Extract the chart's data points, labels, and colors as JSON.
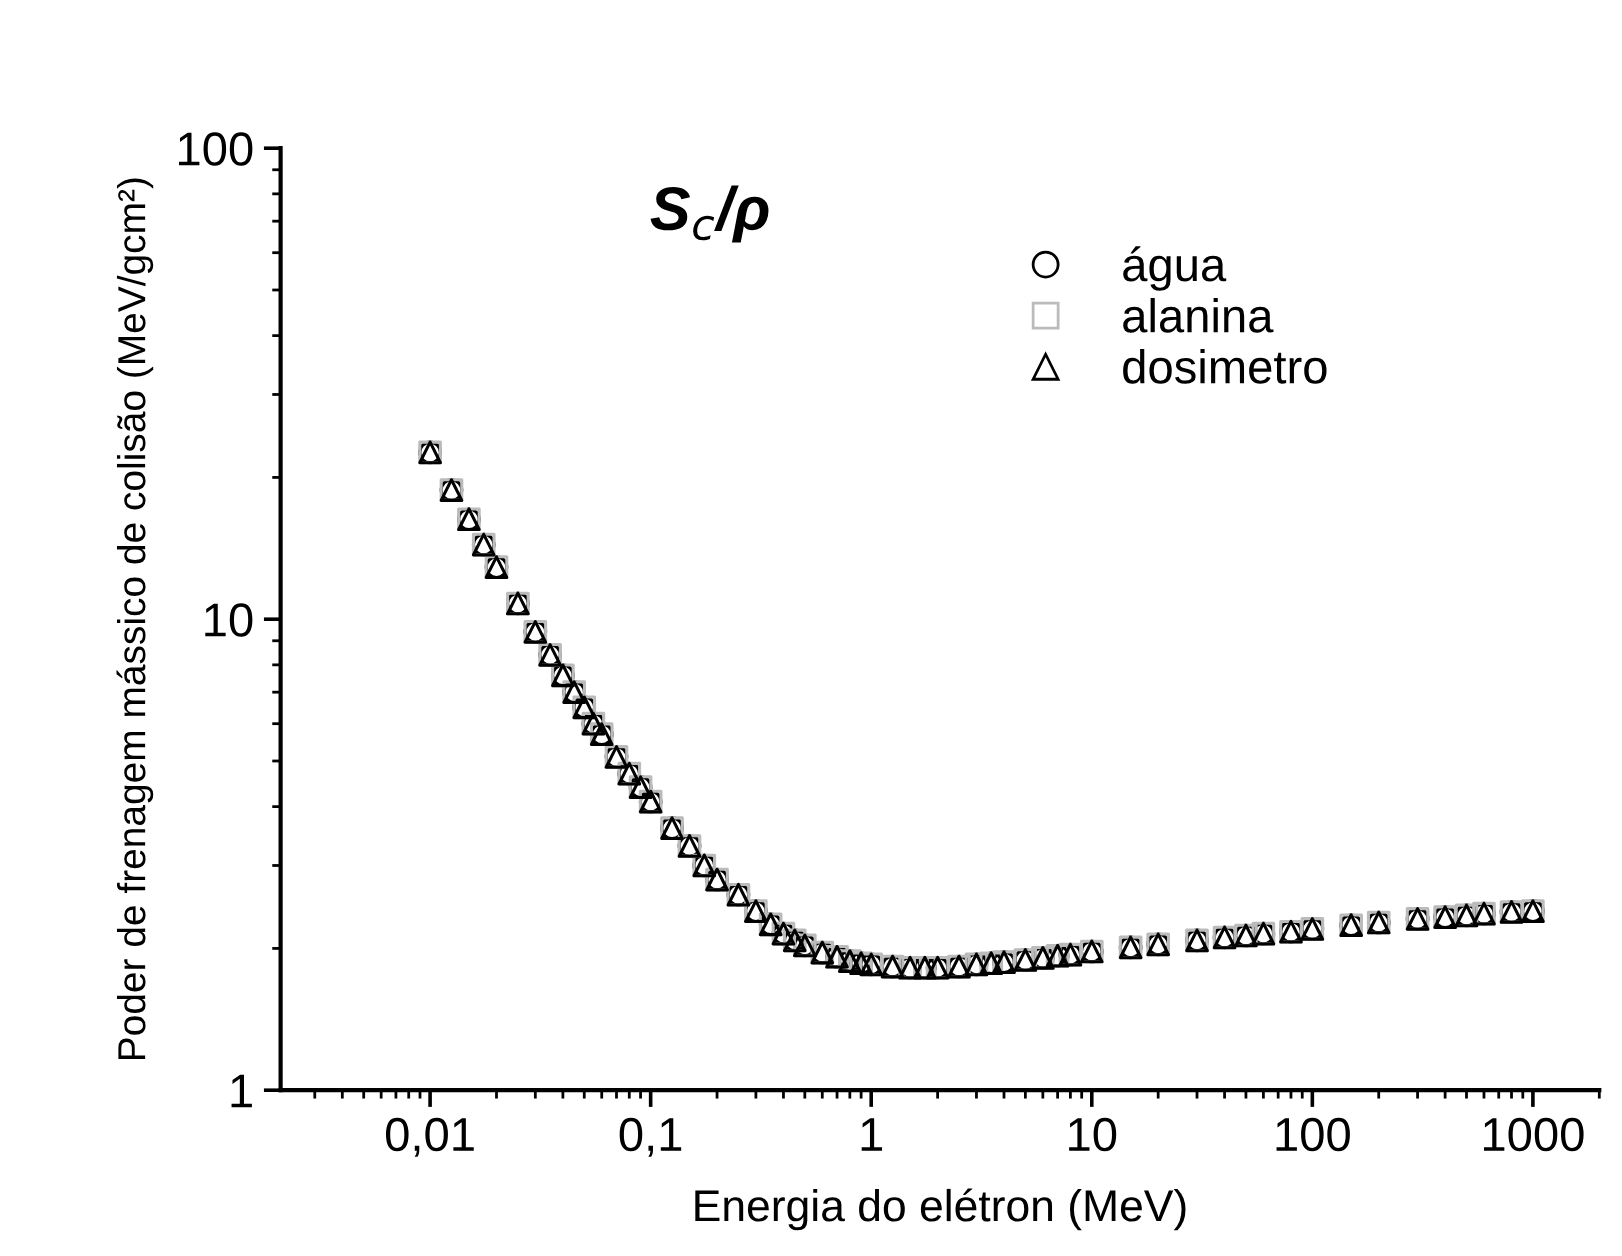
{
  "chart_data": {
    "type": "scatter",
    "title": "S$_{c}$/ρ",
    "xlabel": "Energia do elétron (MeV)",
    "ylabel": "Poder de frenagem mássico de colisão (MeV/gcm²)",
    "log": "xy",
    "xlim": [
      0.0021,
      2000
    ],
    "ylim": [
      1,
      100
    ],
    "xticks": [
      {
        "value": 0.01,
        "label": "0,01"
      },
      {
        "value": 0.1,
        "label": "0,1"
      },
      1,
      10,
      100,
      1000
    ],
    "yticks": [
      1,
      10,
      100
    ],
    "grid": false,
    "legend": "top right",
    "x": [
      0.01,
      0.0125,
      0.015,
      0.0175,
      0.02,
      0.025,
      0.03,
      0.035,
      0.04,
      0.045,
      0.05,
      0.055,
      0.06,
      0.07,
      0.08,
      0.09,
      0.1,
      0.125,
      0.15,
      0.175,
      0.2,
      0.25,
      0.3,
      0.35,
      0.4,
      0.45,
      0.5,
      0.6,
      0.7,
      0.8,
      0.9,
      1,
      1.25,
      1.5,
      1.75,
      2,
      2.5,
      3,
      3.5,
      4,
      5,
      6,
      7,
      8,
      10,
      15,
      20,
      30,
      40,
      50,
      60,
      80,
      100,
      150,
      200,
      300,
      400,
      500,
      600,
      800,
      1000
    ],
    "series": [
      {
        "name": "água",
        "color": "#000000",
        "marker": "circle",
        "values": [
          22.6,
          18.8,
          16.3,
          14.4,
          12.9,
          10.8,
          9.4,
          8.4,
          7.6,
          7.0,
          6.5,
          6.0,
          5.7,
          5.1,
          4.7,
          4.4,
          4.1,
          3.6,
          3.3,
          3.0,
          2.8,
          2.6,
          2.4,
          2.25,
          2.15,
          2.08,
          2.03,
          1.96,
          1.92,
          1.88,
          1.86,
          1.85,
          1.83,
          1.82,
          1.82,
          1.82,
          1.83,
          1.85,
          1.86,
          1.87,
          1.89,
          1.91,
          1.93,
          1.94,
          1.97,
          2.01,
          2.04,
          2.08,
          2.11,
          2.13,
          2.15,
          2.17,
          2.2,
          2.24,
          2.27,
          2.31,
          2.33,
          2.35,
          2.37,
          2.39,
          2.4
        ]
      },
      {
        "name": "alanina",
        "color": "#bbbbbb",
        "marker": "square",
        "values": [
          22.6,
          18.8,
          16.3,
          14.4,
          12.9,
          10.8,
          9.4,
          8.4,
          7.6,
          7.0,
          6.5,
          6.0,
          5.7,
          5.1,
          4.7,
          4.4,
          4.1,
          3.6,
          3.3,
          3.0,
          2.8,
          2.6,
          2.4,
          2.25,
          2.15,
          2.08,
          2.03,
          1.96,
          1.92,
          1.88,
          1.86,
          1.85,
          1.83,
          1.82,
          1.82,
          1.82,
          1.83,
          1.85,
          1.86,
          1.87,
          1.89,
          1.91,
          1.93,
          1.94,
          1.97,
          2.01,
          2.04,
          2.08,
          2.11,
          2.13,
          2.15,
          2.17,
          2.2,
          2.24,
          2.27,
          2.31,
          2.33,
          2.35,
          2.37,
          2.39,
          2.4
        ]
      },
      {
        "name": "dosimetro",
        "color": "#000000",
        "marker": "triangle",
        "values": [
          22.6,
          18.8,
          16.3,
          14.4,
          12.9,
          10.8,
          9.4,
          8.4,
          7.6,
          7.0,
          6.5,
          6.0,
          5.7,
          5.1,
          4.7,
          4.4,
          4.1,
          3.6,
          3.3,
          3.0,
          2.8,
          2.6,
          2.4,
          2.25,
          2.15,
          2.08,
          2.03,
          1.96,
          1.92,
          1.88,
          1.86,
          1.85,
          1.83,
          1.82,
          1.82,
          1.82,
          1.83,
          1.85,
          1.86,
          1.87,
          1.89,
          1.91,
          1.93,
          1.94,
          1.97,
          2.01,
          2.04,
          2.08,
          2.11,
          2.13,
          2.15,
          2.17,
          2.2,
          2.24,
          2.27,
          2.31,
          2.33,
          2.35,
          2.37,
          2.39,
          2.4
        ]
      }
    ]
  }
}
